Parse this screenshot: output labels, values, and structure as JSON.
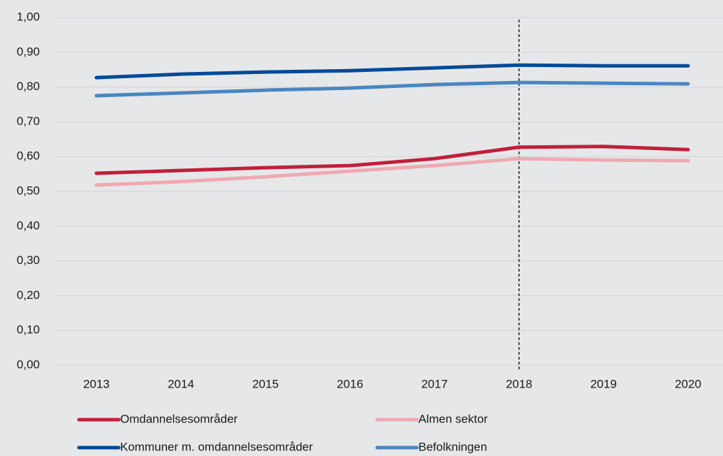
{
  "chart_data": {
    "type": "line",
    "categories": [
      "2013",
      "2014",
      "2015",
      "2016",
      "2017",
      "2018",
      "2019",
      "2020"
    ],
    "series": [
      {
        "name": "Omdannelsesområder",
        "color": "#c0203a",
        "values": [
          0.552,
          0.56,
          0.568,
          0.574,
          0.594,
          0.627,
          0.629,
          0.62
        ]
      },
      {
        "name": "Almen sektor",
        "color": "#f0a9b1",
        "values": [
          0.518,
          0.528,
          0.542,
          0.558,
          0.574,
          0.594,
          0.59,
          0.588
        ]
      },
      {
        "name": "Kommuner m. omdannelsesområder",
        "color": "#004a97",
        "values": [
          0.827,
          0.837,
          0.843,
          0.847,
          0.855,
          0.863,
          0.861,
          0.861
        ]
      },
      {
        "name": "Befolkningen",
        "color": "#4a86c0",
        "values": [
          0.775,
          0.783,
          0.791,
          0.797,
          0.807,
          0.813,
          0.811,
          0.809
        ]
      }
    ],
    "ylim": [
      0,
      1
    ],
    "yticks": [
      {
        "value": 0,
        "label": "0,00"
      },
      {
        "value": 0.1,
        "label": "0,10"
      },
      {
        "value": 0.2,
        "label": "0,20"
      },
      {
        "value": 0.3,
        "label": "0,30"
      },
      {
        "value": 0.4,
        "label": "0,40"
      },
      {
        "value": 0.5,
        "label": "0,50"
      },
      {
        "value": 0.6,
        "label": "0,60"
      },
      {
        "value": 0.7,
        "label": "0,70"
      },
      {
        "value": 0.8,
        "label": "0,80"
      },
      {
        "value": 0.9,
        "label": "0,90"
      },
      {
        "value": 1,
        "label": "1,00"
      }
    ],
    "grid": true,
    "reference_line": {
      "x": "2018",
      "style": "dashed"
    },
    "legend": "bottom"
  }
}
